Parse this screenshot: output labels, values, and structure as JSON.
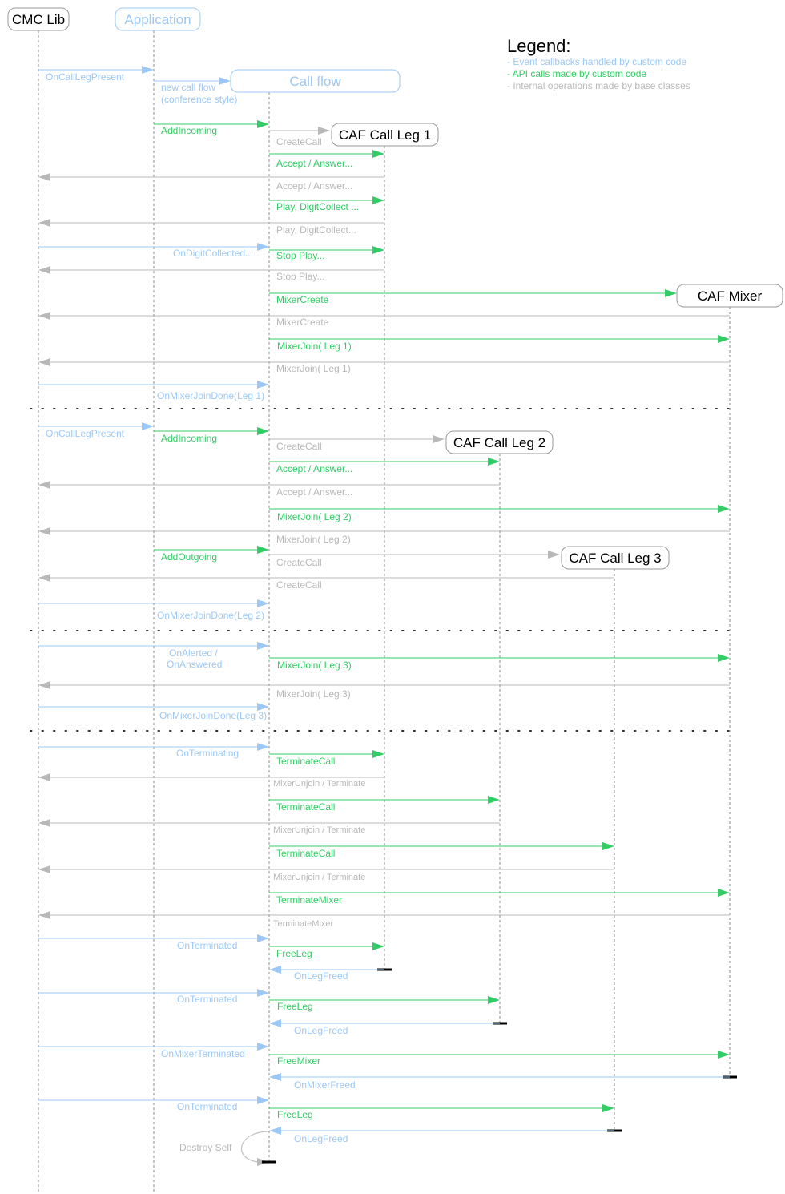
{
  "colors": {
    "callback": "#9DC8F5",
    "api": "#33CC66",
    "internal": "#B8B8B8",
    "lifeline": "#8A8A8A",
    "ink": "#000000",
    "dots": "#333333"
  },
  "legend": {
    "title": "Legend:",
    "items": [
      {
        "text": "- Event callbacks handled by custom code",
        "kind": "callback"
      },
      {
        "text": "- API calls made by custom code",
        "kind": "api"
      },
      {
        "text": "- Internal operations made by base classes",
        "kind": "internal"
      }
    ]
  },
  "participants": [
    {
      "id": "cmc",
      "label": "CMC Lib",
      "kind": "ink"
    },
    {
      "id": "app",
      "label": "Application",
      "kind": "callback"
    },
    {
      "id": "flow",
      "label": "Call flow",
      "kind": "callback"
    },
    {
      "id": "leg1",
      "label": "CAF Call Leg 1",
      "kind": "ink"
    },
    {
      "id": "mixer",
      "label": "CAF Mixer",
      "kind": "ink"
    },
    {
      "id": "leg2",
      "label": "CAF Call Leg 2",
      "kind": "ink"
    },
    {
      "id": "leg3",
      "label": "CAF Call Leg 3",
      "kind": "ink"
    }
  ],
  "messages": [
    {
      "label": "OnCallLegPresent",
      "kind": "callback"
    },
    {
      "label": "new call flow",
      "kind": "callback"
    },
    {
      "label": "(conference style)",
      "kind": "callback"
    },
    {
      "label": "AddIncoming",
      "kind": "api"
    },
    {
      "label": "CreateCall",
      "kind": "internal"
    },
    {
      "label": "Accept / Answer...",
      "kind": "api"
    },
    {
      "label": "Accept / Answer...",
      "kind": "internal"
    },
    {
      "label": "Play, DigitCollect ...",
      "kind": "api"
    },
    {
      "label": "Play, DigitCollect...",
      "kind": "internal"
    },
    {
      "label": "OnDigitCollected...",
      "kind": "callback"
    },
    {
      "label": "Stop Play...",
      "kind": "api"
    },
    {
      "label": "Stop Play...",
      "kind": "internal"
    },
    {
      "label": "MixerCreate",
      "kind": "api"
    },
    {
      "label": "MixerCreate",
      "kind": "internal"
    },
    {
      "label": "MixerJoin( Leg 1)",
      "kind": "api"
    },
    {
      "label": "MixerJoin( Leg 1)",
      "kind": "internal"
    },
    {
      "label": "OnMixerJoinDone(Leg 1)",
      "kind": "callback"
    },
    {
      "label": "OnCallLegPresent",
      "kind": "callback"
    },
    {
      "label": "AddIncoming",
      "kind": "api"
    },
    {
      "label": "CreateCall",
      "kind": "internal"
    },
    {
      "label": "Accept / Answer...",
      "kind": "api"
    },
    {
      "label": "Accept / Answer...",
      "kind": "internal"
    },
    {
      "label": "MixerJoin( Leg 2)",
      "kind": "api"
    },
    {
      "label": "MixerJoin( Leg 2)",
      "kind": "internal"
    },
    {
      "label": "AddOutgoing",
      "kind": "api"
    },
    {
      "label": "CreateCall",
      "kind": "internal"
    },
    {
      "label": "CreateCall",
      "kind": "internal"
    },
    {
      "label": "OnMixerJoinDone(Leg 2)",
      "kind": "callback"
    },
    {
      "label": "OnAlerted /",
      "kind": "callback"
    },
    {
      "label": "OnAnswered",
      "kind": "callback"
    },
    {
      "label": "MixerJoin( Leg 3)",
      "kind": "api"
    },
    {
      "label": "MixerJoin( Leg 3)",
      "kind": "internal"
    },
    {
      "label": "OnMixerJoinDone(Leg 3)",
      "kind": "callback"
    },
    {
      "label": "OnTerminating",
      "kind": "callback"
    },
    {
      "label": "TerminateCall",
      "kind": "api"
    },
    {
      "label": "MixerUnjoin / Terminate",
      "kind": "internal"
    },
    {
      "label": "TerminateCall",
      "kind": "api"
    },
    {
      "label": "MixerUnjoin / Terminate",
      "kind": "internal"
    },
    {
      "label": "TerminateCall",
      "kind": "api"
    },
    {
      "label": "MixerUnjoin / Terminate",
      "kind": "internal"
    },
    {
      "label": "TerminateMixer",
      "kind": "api"
    },
    {
      "label": "TerminateMixer",
      "kind": "internal"
    },
    {
      "label": "OnTerminated",
      "kind": "callback"
    },
    {
      "label": "FreeLeg",
      "kind": "api"
    },
    {
      "label": "OnLegFreed",
      "kind": "callback"
    },
    {
      "label": "OnTerminated",
      "kind": "callback"
    },
    {
      "label": "FreeLeg",
      "kind": "api"
    },
    {
      "label": "OnLegFreed",
      "kind": "callback"
    },
    {
      "label": "OnMixerTerminated",
      "kind": "callback"
    },
    {
      "label": "FreeMixer",
      "kind": "api"
    },
    {
      "label": "OnMixerFreed",
      "kind": "callback"
    },
    {
      "label": "OnTerminated",
      "kind": "callback"
    },
    {
      "label": "FreeLeg",
      "kind": "api"
    },
    {
      "label": "OnLegFreed",
      "kind": "callback"
    },
    {
      "label": "Destroy Self",
      "kind": "internal"
    }
  ]
}
